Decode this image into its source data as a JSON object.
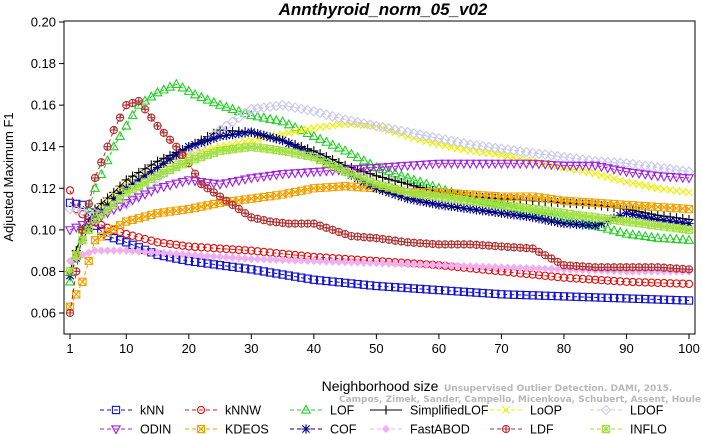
{
  "chart_data": {
    "type": "line",
    "title": "Annthyroid_norm_05_v02",
    "xlabel": "Neighborhood size",
    "ylabel": "Adjusted Maximum F1",
    "xlim": [
      1,
      100
    ],
    "ylim": [
      0.055,
      0.2
    ],
    "x_ticks": [
      1,
      10,
      20,
      30,
      40,
      50,
      60,
      70,
      80,
      90,
      100
    ],
    "y_ticks": [
      0.06,
      0.08,
      0.1,
      0.12,
      0.14,
      0.16,
      0.18,
      0.2
    ],
    "y_tick_labels": [
      "0.06",
      "0.08",
      "0.10",
      "0.12",
      "0.14",
      "0.16",
      "0.18",
      "0.20"
    ],
    "grid": false,
    "legend_position": "bottom",
    "credit": {
      "line1": "Unsupervised Outlier Detection. DAMI, 2015.",
      "line2": "Campos, Zimek, Sander, Campello, Micenkova, Schubert, Assent, Houle"
    },
    "series": [
      {
        "name": "kNN",
        "color": "#1010d0",
        "marker": "square",
        "dash": "4,3",
        "points": [
          [
            1,
            0.113
          ],
          [
            3,
            0.112
          ],
          [
            5,
            0.102
          ],
          [
            7,
            0.097
          ],
          [
            10,
            0.094
          ],
          [
            15,
            0.088
          ],
          [
            20,
            0.085
          ],
          [
            30,
            0.081
          ],
          [
            40,
            0.076
          ],
          [
            50,
            0.073
          ],
          [
            60,
            0.071
          ],
          [
            70,
            0.069
          ],
          [
            80,
            0.068
          ],
          [
            90,
            0.067
          ],
          [
            100,
            0.066
          ]
        ]
      },
      {
        "name": "kNNW",
        "color": "#e01010",
        "marker": "circle",
        "dash": "4,3",
        "points": [
          [
            1,
            0.119
          ],
          [
            2,
            0.11
          ],
          [
            4,
            0.105
          ],
          [
            7,
            0.101
          ],
          [
            10,
            0.098
          ],
          [
            15,
            0.094
          ],
          [
            20,
            0.092
          ],
          [
            30,
            0.09
          ],
          [
            40,
            0.087
          ],
          [
            50,
            0.085
          ],
          [
            60,
            0.083
          ],
          [
            70,
            0.08
          ],
          [
            80,
            0.077
          ],
          [
            90,
            0.075
          ],
          [
            100,
            0.074
          ]
        ]
      },
      {
        "name": "LOF",
        "color": "#20d020",
        "marker": "triangle-up",
        "dash": "4,3",
        "points": [
          [
            1,
            0.075
          ],
          [
            3,
            0.1
          ],
          [
            5,
            0.12
          ],
          [
            8,
            0.14
          ],
          [
            10,
            0.15
          ],
          [
            12,
            0.16
          ],
          [
            15,
            0.166
          ],
          [
            18,
            0.17
          ],
          [
            21,
            0.165
          ],
          [
            25,
            0.16
          ],
          [
            30,
            0.155
          ],
          [
            35,
            0.152
          ],
          [
            40,
            0.145
          ],
          [
            45,
            0.138
          ],
          [
            50,
            0.13
          ],
          [
            55,
            0.125
          ],
          [
            60,
            0.12
          ],
          [
            65,
            0.115
          ],
          [
            70,
            0.112
          ],
          [
            75,
            0.108
          ],
          [
            80,
            0.105
          ],
          [
            85,
            0.102
          ],
          [
            90,
            0.098
          ],
          [
            95,
            0.096
          ],
          [
            100,
            0.095
          ]
        ]
      },
      {
        "name": "SimplifiedLOF",
        "color": "#000000",
        "marker": "plus",
        "dash": "",
        "points": [
          [
            1,
            0.08
          ],
          [
            3,
            0.1
          ],
          [
            5,
            0.11
          ],
          [
            8,
            0.118
          ],
          [
            10,
            0.124
          ],
          [
            15,
            0.133
          ],
          [
            20,
            0.14
          ],
          [
            25,
            0.148
          ],
          [
            30,
            0.147
          ],
          [
            35,
            0.143
          ],
          [
            40,
            0.138
          ],
          [
            45,
            0.131
          ],
          [
            50,
            0.126
          ],
          [
            55,
            0.122
          ],
          [
            60,
            0.118
          ],
          [
            65,
            0.116
          ],
          [
            70,
            0.115
          ],
          [
            75,
            0.114
          ],
          [
            80,
            0.113
          ],
          [
            85,
            0.112
          ],
          [
            90,
            0.11
          ],
          [
            95,
            0.107
          ],
          [
            100,
            0.105
          ]
        ]
      },
      {
        "name": "LoOP",
        "color": "#f0f000",
        "marker": "x",
        "dash": "4,3",
        "points": [
          [
            1,
            0.08
          ],
          [
            3,
            0.098
          ],
          [
            5,
            0.108
          ],
          [
            8,
            0.117
          ],
          [
            10,
            0.122
          ],
          [
            15,
            0.13
          ],
          [
            20,
            0.136
          ],
          [
            25,
            0.14
          ],
          [
            30,
            0.143
          ],
          [
            35,
            0.146
          ],
          [
            40,
            0.149
          ],
          [
            45,
            0.151
          ],
          [
            50,
            0.15
          ],
          [
            55,
            0.145
          ],
          [
            60,
            0.141
          ],
          [
            65,
            0.138
          ],
          [
            70,
            0.136
          ],
          [
            75,
            0.133
          ],
          [
            80,
            0.13
          ],
          [
            85,
            0.127
          ],
          [
            90,
            0.123
          ],
          [
            95,
            0.12
          ],
          [
            100,
            0.118
          ]
        ]
      },
      {
        "name": "LDOF",
        "color": "#c8c8f0",
        "marker": "diamond",
        "dash": "4,3",
        "points": [
          [
            1,
            0.11
          ],
          [
            5,
            0.108
          ],
          [
            10,
            0.112
          ],
          [
            15,
            0.125
          ],
          [
            20,
            0.135
          ],
          [
            25,
            0.148
          ],
          [
            30,
            0.158
          ],
          [
            35,
            0.16
          ],
          [
            40,
            0.157
          ],
          [
            45,
            0.153
          ],
          [
            50,
            0.15
          ],
          [
            55,
            0.147
          ],
          [
            60,
            0.144
          ],
          [
            65,
            0.141
          ],
          [
            70,
            0.139
          ],
          [
            75,
            0.137
          ],
          [
            80,
            0.135
          ],
          [
            85,
            0.133
          ],
          [
            90,
            0.132
          ],
          [
            95,
            0.13
          ],
          [
            100,
            0.128
          ]
        ]
      },
      {
        "name": "ODIN",
        "color": "#a020e0",
        "marker": "triangle-down",
        "dash": "4,3",
        "points": [
          [
            1,
            0.1
          ],
          [
            5,
            0.105
          ],
          [
            10,
            0.113
          ],
          [
            15,
            0.12
          ],
          [
            20,
            0.124
          ],
          [
            25,
            0.122
          ],
          [
            30,
            0.125
          ],
          [
            35,
            0.127
          ],
          [
            40,
            0.128
          ],
          [
            45,
            0.129
          ],
          [
            50,
            0.13
          ],
          [
            55,
            0.131
          ],
          [
            60,
            0.132
          ],
          [
            65,
            0.132
          ],
          [
            70,
            0.132
          ],
          [
            75,
            0.132
          ],
          [
            80,
            0.131
          ],
          [
            85,
            0.131
          ],
          [
            90,
            0.128
          ],
          [
            95,
            0.126
          ],
          [
            100,
            0.125
          ]
        ]
      },
      {
        "name": "KDEOS",
        "color": "#f0a000",
        "marker": "square-x",
        "dash": "4,3",
        "points": [
          [
            1,
            0.063
          ],
          [
            3,
            0.075
          ],
          [
            5,
            0.095
          ],
          [
            10,
            0.104
          ],
          [
            15,
            0.108
          ],
          [
            20,
            0.11
          ],
          [
            25,
            0.113
          ],
          [
            30,
            0.115
          ],
          [
            35,
            0.117
          ],
          [
            40,
            0.12
          ],
          [
            45,
            0.121
          ],
          [
            50,
            0.12
          ],
          [
            55,
            0.118
          ],
          [
            60,
            0.118
          ],
          [
            65,
            0.117
          ],
          [
            70,
            0.116
          ],
          [
            75,
            0.116
          ],
          [
            80,
            0.114
          ],
          [
            85,
            0.113
          ],
          [
            90,
            0.112
          ],
          [
            95,
            0.111
          ],
          [
            100,
            0.11
          ]
        ]
      },
      {
        "name": "COF",
        "color": "#000080",
        "marker": "star",
        "dash": "4,3",
        "points": [
          [
            1,
            0.078
          ],
          [
            3,
            0.095
          ],
          [
            5,
            0.106
          ],
          [
            8,
            0.115
          ],
          [
            10,
            0.12
          ],
          [
            15,
            0.13
          ],
          [
            20,
            0.14
          ],
          [
            25,
            0.145
          ],
          [
            30,
            0.147
          ],
          [
            35,
            0.143
          ],
          [
            40,
            0.136
          ],
          [
            45,
            0.128
          ],
          [
            50,
            0.12
          ],
          [
            55,
            0.115
          ],
          [
            60,
            0.112
          ],
          [
            65,
            0.11
          ],
          [
            70,
            0.108
          ],
          [
            75,
            0.106
          ],
          [
            80,
            0.103
          ],
          [
            85,
            0.102
          ],
          [
            90,
            0.108
          ],
          [
            95,
            0.105
          ],
          [
            100,
            0.103
          ]
        ]
      },
      {
        "name": "FastABOD",
        "color": "#f0b0f0",
        "marker": "diamond-filled",
        "dash": "4,3",
        "points": [
          [
            1,
            0.085
          ],
          [
            3,
            0.088
          ],
          [
            5,
            0.09
          ],
          [
            10,
            0.09
          ],
          [
            20,
            0.088
          ],
          [
            30,
            0.086
          ],
          [
            40,
            0.085
          ],
          [
            50,
            0.084
          ],
          [
            60,
            0.083
          ],
          [
            70,
            0.082
          ],
          [
            80,
            0.081
          ],
          [
            90,
            0.08
          ],
          [
            100,
            0.08
          ]
        ]
      },
      {
        "name": "LDF",
        "color": "#b03030",
        "marker": "circle-plus",
        "dash": "4,3",
        "points": [
          [
            1,
            0.06
          ],
          [
            3,
            0.1
          ],
          [
            5,
            0.125
          ],
          [
            7,
            0.14
          ],
          [
            8,
            0.148
          ],
          [
            10,
            0.16
          ],
          [
            12,
            0.162
          ],
          [
            15,
            0.15
          ],
          [
            18,
            0.14
          ],
          [
            20,
            0.132
          ],
          [
            22,
            0.122
          ],
          [
            25,
            0.116
          ],
          [
            28,
            0.11
          ],
          [
            30,
            0.106
          ],
          [
            33,
            0.104
          ],
          [
            36,
            0.103
          ],
          [
            40,
            0.103
          ],
          [
            43,
            0.1
          ],
          [
            46,
            0.097
          ],
          [
            50,
            0.096
          ],
          [
            55,
            0.094
          ],
          [
            60,
            0.093
          ],
          [
            65,
            0.093
          ],
          [
            70,
            0.092
          ],
          [
            75,
            0.091
          ],
          [
            80,
            0.083
          ],
          [
            85,
            0.082
          ],
          [
            90,
            0.082
          ],
          [
            95,
            0.082
          ],
          [
            100,
            0.081
          ]
        ]
      },
      {
        "name": "INFLO",
        "color": "#a0e040",
        "marker": "square-star",
        "dash": "4,3",
        "points": [
          [
            1,
            0.08
          ],
          [
            3,
            0.095
          ],
          [
            5,
            0.105
          ],
          [
            8,
            0.112
          ],
          [
            10,
            0.118
          ],
          [
            15,
            0.126
          ],
          [
            20,
            0.133
          ],
          [
            25,
            0.138
          ],
          [
            30,
            0.14
          ],
          [
            35,
            0.138
          ],
          [
            40,
            0.135
          ],
          [
            45,
            0.128
          ],
          [
            50,
            0.122
          ],
          [
            55,
            0.118
          ],
          [
            60,
            0.116
          ],
          [
            65,
            0.114
          ],
          [
            70,
            0.112
          ],
          [
            75,
            0.11
          ],
          [
            80,
            0.108
          ],
          [
            85,
            0.106
          ],
          [
            90,
            0.104
          ],
          [
            95,
            0.102
          ],
          [
            100,
            0.1
          ]
        ]
      }
    ]
  }
}
